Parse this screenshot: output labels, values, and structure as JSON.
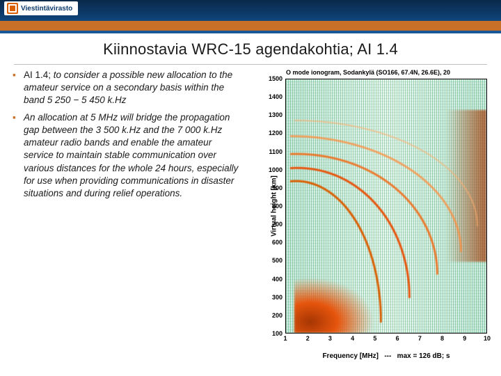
{
  "brand": {
    "name": "Viestintävirasto"
  },
  "title": "Kiinnostavia WRC-15 agendakohtia; AI 1.4",
  "bullets": [
    {
      "lead": "AI 1.4; ",
      "text": "to consider a possible new allocation to the amateur service on a secondary basis within the band 5 250 − 5 450 k.Hz"
    },
    {
      "lead": "",
      "text": "An allocation at 5 MHz will bridge the propagation gap between the 3 500 k.Hz and the 7 000 k.Hz amateur radio bands and enable the amateur service to maintain stable communication over various distances for the whole 24 hours, especially for use when providing communications in disaster situations and during relief operations."
    }
  ],
  "chart": {
    "type": "ionogram",
    "title": "O mode ionogram, Sodankylä (SO166, 67.4N, 26.6E), 20",
    "ylabel": "Virtual height [km]",
    "xlabel_left": "Frequency [MHz]",
    "xlabel_right": "max = 126 dB; s",
    "ylim": [
      100,
      1500
    ],
    "ytick_step": 100,
    "yticks": [
      1500,
      1400,
      1300,
      1200,
      1100,
      1000,
      900,
      800,
      700,
      600,
      500,
      400,
      300,
      200,
      100
    ],
    "xlim": [
      1,
      10
    ],
    "xticks": [
      1,
      2,
      3,
      4,
      5,
      6,
      7,
      8,
      9,
      10
    ],
    "background_color": "#c6e9df",
    "noise_color": "#31a354",
    "trace_colors": [
      "#a63603",
      "#d95f02",
      "#e6550d",
      "#f16913",
      "#fd8d3c",
      "#fdae6b"
    ],
    "axis_color": "#000000",
    "tick_fontsize": 9,
    "label_fontsize": 10,
    "title_fontsize": 9
  },
  "colors": {
    "banner_gradient_top": "#0a2a4a",
    "banner_gradient_bottom": "#1a5a9a",
    "orange_strip": "#c87028",
    "brand_orange": "#d95f02",
    "text": "#1a1a1a",
    "divider": "#bfbfbf"
  }
}
